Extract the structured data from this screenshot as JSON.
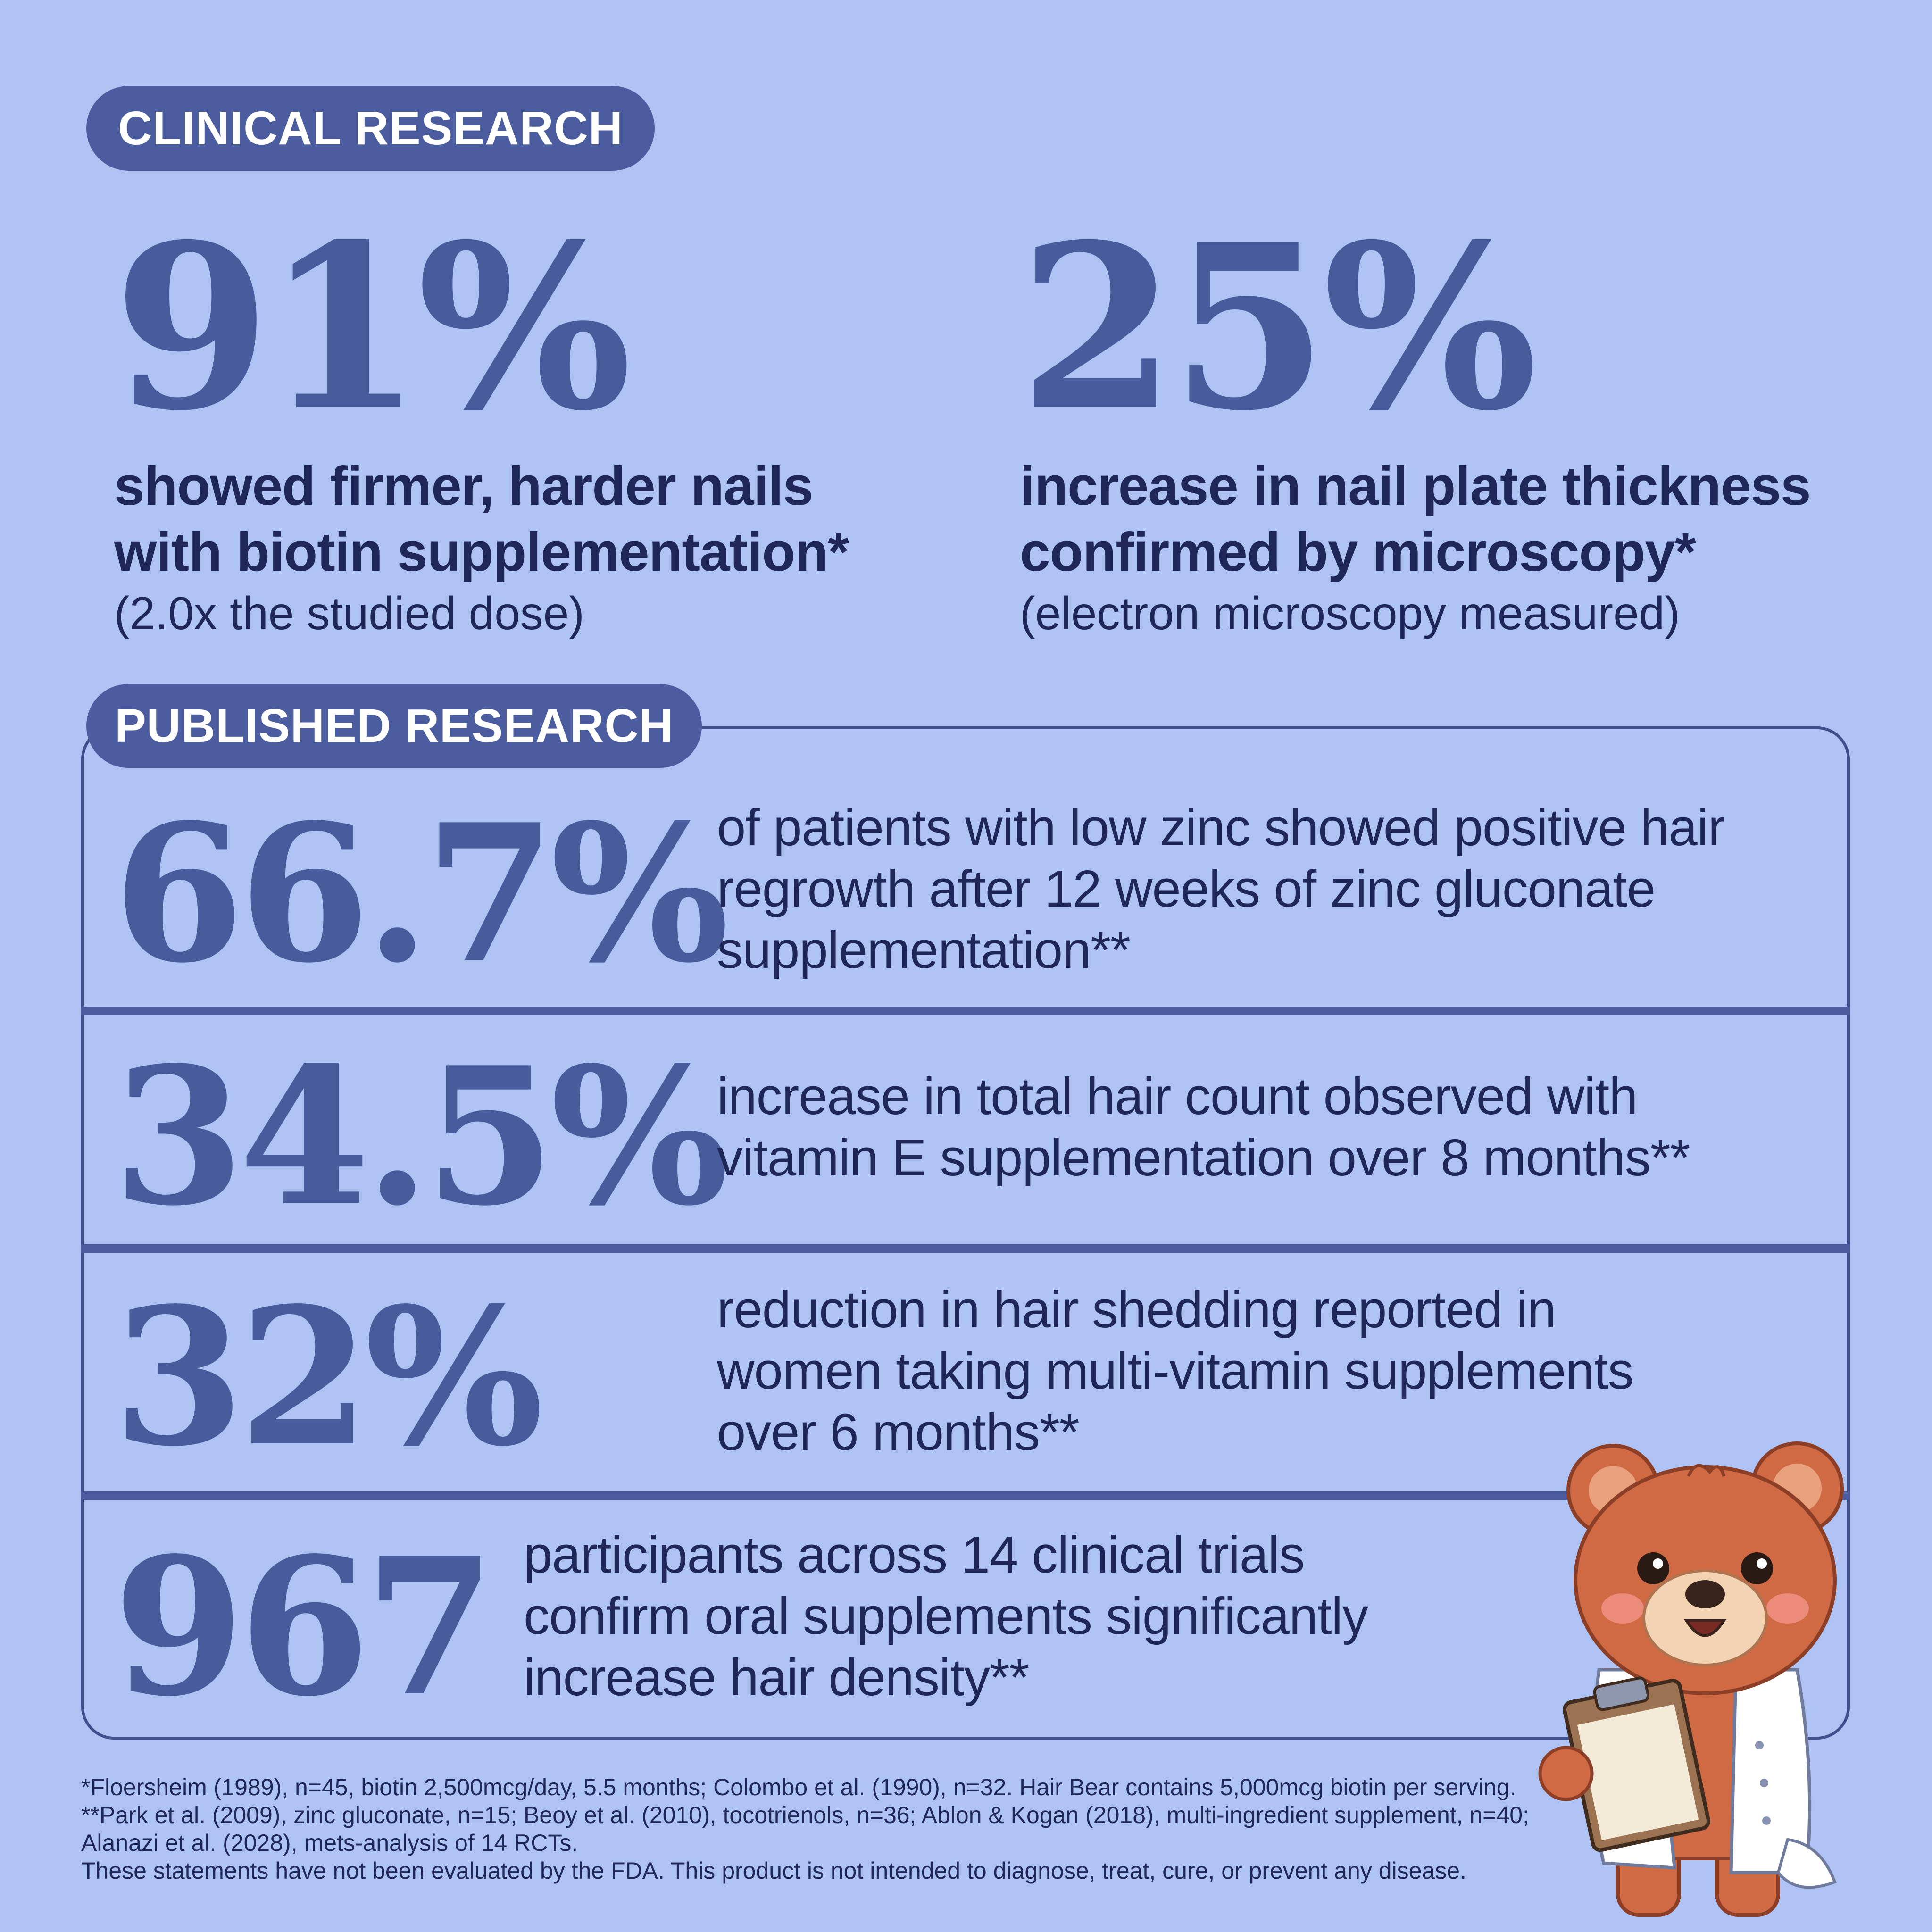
{
  "clinical": {
    "label": "CLINICAL RESEARCH",
    "stats": [
      {
        "value": "91%",
        "desc_line1": "showed firmer, harder nails",
        "desc_line2": "with biotin supplementation*",
        "note": "(2.0x the studied dose)"
      },
      {
        "value": "25%",
        "desc_line1": "increase in nail plate thickness",
        "desc_line2": "confirmed by microscopy*",
        "note": "(electron microscopy measured)"
      }
    ]
  },
  "published": {
    "label": "PUBLISHED RESEARCH",
    "rows": [
      {
        "value": "66.7%",
        "lines": [
          "of patients with low zinc showed positive hair",
          "regrowth after 12 weeks of zinc gluconate",
          "supplementation**"
        ]
      },
      {
        "value": "34.5%",
        "lines": [
          "increase in total hair count observed with",
          "vitamin E supplementation over 8 months**"
        ]
      },
      {
        "value": "32%",
        "lines": [
          "reduction in hair shedding reported in",
          "women taking multi-vitamin supplements",
          "over 6 months**"
        ]
      },
      {
        "value": "967",
        "lines": [
          "participants across 14 clinical trials",
          "confirm oral supplements significantly",
          "increase hair density**"
        ]
      }
    ]
  },
  "footnotes": [
    "*Floersheim (1989), n=45, biotin 2,500mcg/day, 5.5 months; Colombo et al. (1990), n=32. Hair Bear contains 5,000mcg biotin per serving.",
    "**Park et al. (2009), zinc gluconate, n=15; Beoy et al. (2010), tocotrienols, n=36; Ablon & Kogan (2018), multi-ingredient supplement, n=40;",
    "Alanazi et al. (2028), mets-analysis of 14 RCTs.",
    "These statements have not been evaluated by the FDA. This product is not intended to diagnose, treat, cure, or prevent any disease."
  ],
  "mascot": {
    "icon": "bear-doctor-icon"
  },
  "colors": {
    "background": "#aec3f4",
    "accent": "#485c9c",
    "pill": "#4c5d9f",
    "text": "#1e2757"
  }
}
